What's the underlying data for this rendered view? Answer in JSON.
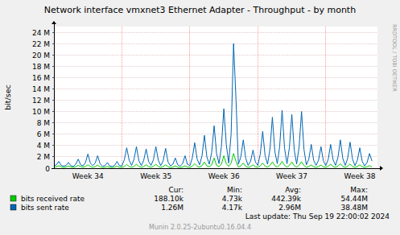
{
  "chart_data": {
    "type": "line",
    "title": "Network interface vmxnet3 Ethernet Adapter - Throughput - by month",
    "y_label": "bit/sec",
    "watermark": "RRDTOOL / TOBI OETIKER",
    "last_update": "Last update: Thu Sep 19 22:00:02 2024",
    "footer": "Munin 2.0.25-2ubuntu0.16.04.4",
    "stat_headers": [
      "Cur:",
      "Min:",
      "Avg:",
      "Max:"
    ],
    "grid": true,
    "legend": "bottom",
    "xlim": [
      34,
      38.76
    ],
    "xticks": [
      {
        "value": 34.5,
        "label": "Week 34"
      },
      {
        "value": 35.5,
        "label": "Week 35"
      },
      {
        "value": 36.5,
        "label": "Week 36"
      },
      {
        "value": 37.5,
        "label": "Week 37"
      },
      {
        "value": 38.5,
        "label": "Week 38"
      }
    ],
    "ylim": [
      0,
      25000000
    ],
    "yticks": [
      0,
      {
        "value": 2000000,
        "label": "2 M"
      },
      {
        "value": 4000000,
        "label": "4 M"
      },
      {
        "value": 6000000,
        "label": "6 M"
      },
      {
        "value": 8000000,
        "label": "8 M"
      },
      {
        "value": 10000000,
        "label": "10 M"
      },
      {
        "value": 12000000,
        "label": "12 M"
      },
      {
        "value": 14000000,
        "label": "14 M"
      },
      {
        "value": 16000000,
        "label": "16 M"
      },
      {
        "value": 18000000,
        "label": "18 M"
      },
      {
        "value": 20000000,
        "label": "20 M"
      },
      {
        "value": 22000000,
        "label": "22 M"
      },
      {
        "value": 24000000,
        "label": "24 M"
      }
    ],
    "x": [
      34,
      34.036,
      34.071,
      34.107,
      34.143,
      34.179,
      34.214,
      34.25,
      34.286,
      34.321,
      34.357,
      34.393,
      34.429,
      34.464,
      34.5,
      34.536,
      34.571,
      34.607,
      34.643,
      34.679,
      34.714,
      34.75,
      34.786,
      34.821,
      34.857,
      34.893,
      34.929,
      34.964,
      35,
      35.036,
      35.071,
      35.107,
      35.143,
      35.179,
      35.214,
      35.25,
      35.286,
      35.321,
      35.357,
      35.393,
      35.429,
      35.464,
      35.5,
      35.536,
      35.571,
      35.607,
      35.643,
      35.679,
      35.714,
      35.75,
      35.786,
      35.821,
      35.857,
      35.893,
      35.929,
      35.964,
      36,
      36.036,
      36.071,
      36.107,
      36.143,
      36.179,
      36.214,
      36.25,
      36.286,
      36.321,
      36.357,
      36.393,
      36.429,
      36.464,
      36.5,
      36.536,
      36.571,
      36.607,
      36.643,
      36.679,
      36.714,
      36.75,
      36.786,
      36.821,
      36.857,
      36.893,
      36.929,
      36.964,
      37,
      37.036,
      37.071,
      37.107,
      37.143,
      37.179,
      37.214,
      37.25,
      37.286,
      37.321,
      37.357,
      37.393,
      37.429,
      37.464,
      37.5,
      37.536,
      37.571,
      37.607,
      37.643,
      37.679,
      37.714,
      37.75,
      37.786,
      37.821,
      37.857,
      37.893,
      37.929,
      37.964,
      38,
      38.036,
      38.071,
      38.107,
      38.143,
      38.179,
      38.214,
      38.25,
      38.286,
      38.321,
      38.357,
      38.393,
      38.429,
      38.464,
      38.5,
      38.536,
      38.571,
      38.607,
      38.643,
      38.679
    ],
    "series": [
      {
        "name": "bits received rate",
        "color": "#00CC00",
        "stats": [
          "188.10k",
          "4.73k",
          "442.39k",
          "54.44M"
        ],
        "values": [
          150000,
          250000,
          450000,
          250000,
          120000,
          220000,
          380000,
          200000,
          140000,
          260000,
          500000,
          280000,
          160000,
          300000,
          600000,
          300000,
          150000,
          280000,
          550000,
          260000,
          100000,
          180000,
          300000,
          150000,
          110000,
          200000,
          350000,
          180000,
          150000,
          300000,
          650000,
          300000,
          180000,
          320000,
          700000,
          320000,
          160000,
          300000,
          620000,
          280000,
          170000,
          330000,
          680000,
          300000,
          160000,
          300000,
          600000,
          270000,
          120000,
          200000,
          380000,
          180000,
          110000,
          220000,
          420000,
          200000,
          150000,
          350000,
          800000,
          350000,
          200000,
          450000,
          1100000,
          400000,
          250000,
          600000,
          1800000,
          500000,
          300000,
          700000,
          2200000,
          800000,
          300000,
          900000,
          2600000,
          1200000,
          200000,
          400000,
          900000,
          350000,
          150000,
          300000,
          600000,
          250000,
          180000,
          400000,
          900000,
          350000,
          200000,
          500000,
          1100000,
          450000,
          220000,
          550000,
          1200000,
          500000,
          200000,
          500000,
          1100000,
          450000,
          200000,
          520000,
          1150000,
          480000,
          150000,
          300000,
          600000,
          250000,
          140000,
          280000,
          550000,
          230000,
          150000,
          350000,
          700000,
          300000,
          160000,
          380000,
          800000,
          320000,
          150000,
          350000,
          750000,
          300000,
          140000,
          300000,
          600000,
          260000,
          130000,
          250000,
          450000,
          188100
        ]
      },
      {
        "name": "bits sent rate",
        "color": "#0066B3",
        "stats": [
          "1.26M",
          "4.17k",
          "2.96M",
          "38.48M"
        ],
        "values": [
          400000,
          600000,
          1200000,
          500000,
          350000,
          500000,
          1000000,
          450000,
          300000,
          700000,
          1600000,
          600000,
          400000,
          1000000,
          2500000,
          900000,
          450000,
          900000,
          2200000,
          800000,
          350000,
          450000,
          1000000,
          400000,
          300000,
          500000,
          1200000,
          450000,
          400000,
          1500000,
          3600000,
          1400000,
          500000,
          1600000,
          3800000,
          1300000,
          450000,
          1400000,
          3400000,
          1200000,
          500000,
          1500000,
          3800000,
          1400000,
          450000,
          1300000,
          3500000,
          1100000,
          400000,
          700000,
          1800000,
          600000,
          350000,
          800000,
          2200000,
          700000,
          450000,
          1800000,
          4500000,
          1600000,
          600000,
          2200000,
          5800000,
          2000000,
          700000,
          2800000,
          7500000,
          2600000,
          800000,
          3800000,
          10500000,
          4200000,
          900000,
          6000000,
          22000000,
          12000000,
          700000,
          2000000,
          5000000,
          1800000,
          500000,
          1200000,
          3200000,
          1100000,
          500000,
          2500000,
          6500000,
          2200000,
          700000,
          3400000,
          9000000,
          3000000,
          800000,
          3800000,
          10200000,
          3500000,
          800000,
          3600000,
          9500000,
          3200000,
          750000,
          3700000,
          10000000,
          3300000,
          600000,
          1600000,
          4200000,
          1400000,
          500000,
          1400000,
          3800000,
          1300000,
          450000,
          1600000,
          4200000,
          1500000,
          500000,
          1900000,
          5000000,
          1700000,
          500000,
          1700000,
          4600000,
          1600000,
          450000,
          1400000,
          3600000,
          1200000,
          400000,
          1000000,
          2600000,
          1260000
        ]
      }
    ]
  }
}
